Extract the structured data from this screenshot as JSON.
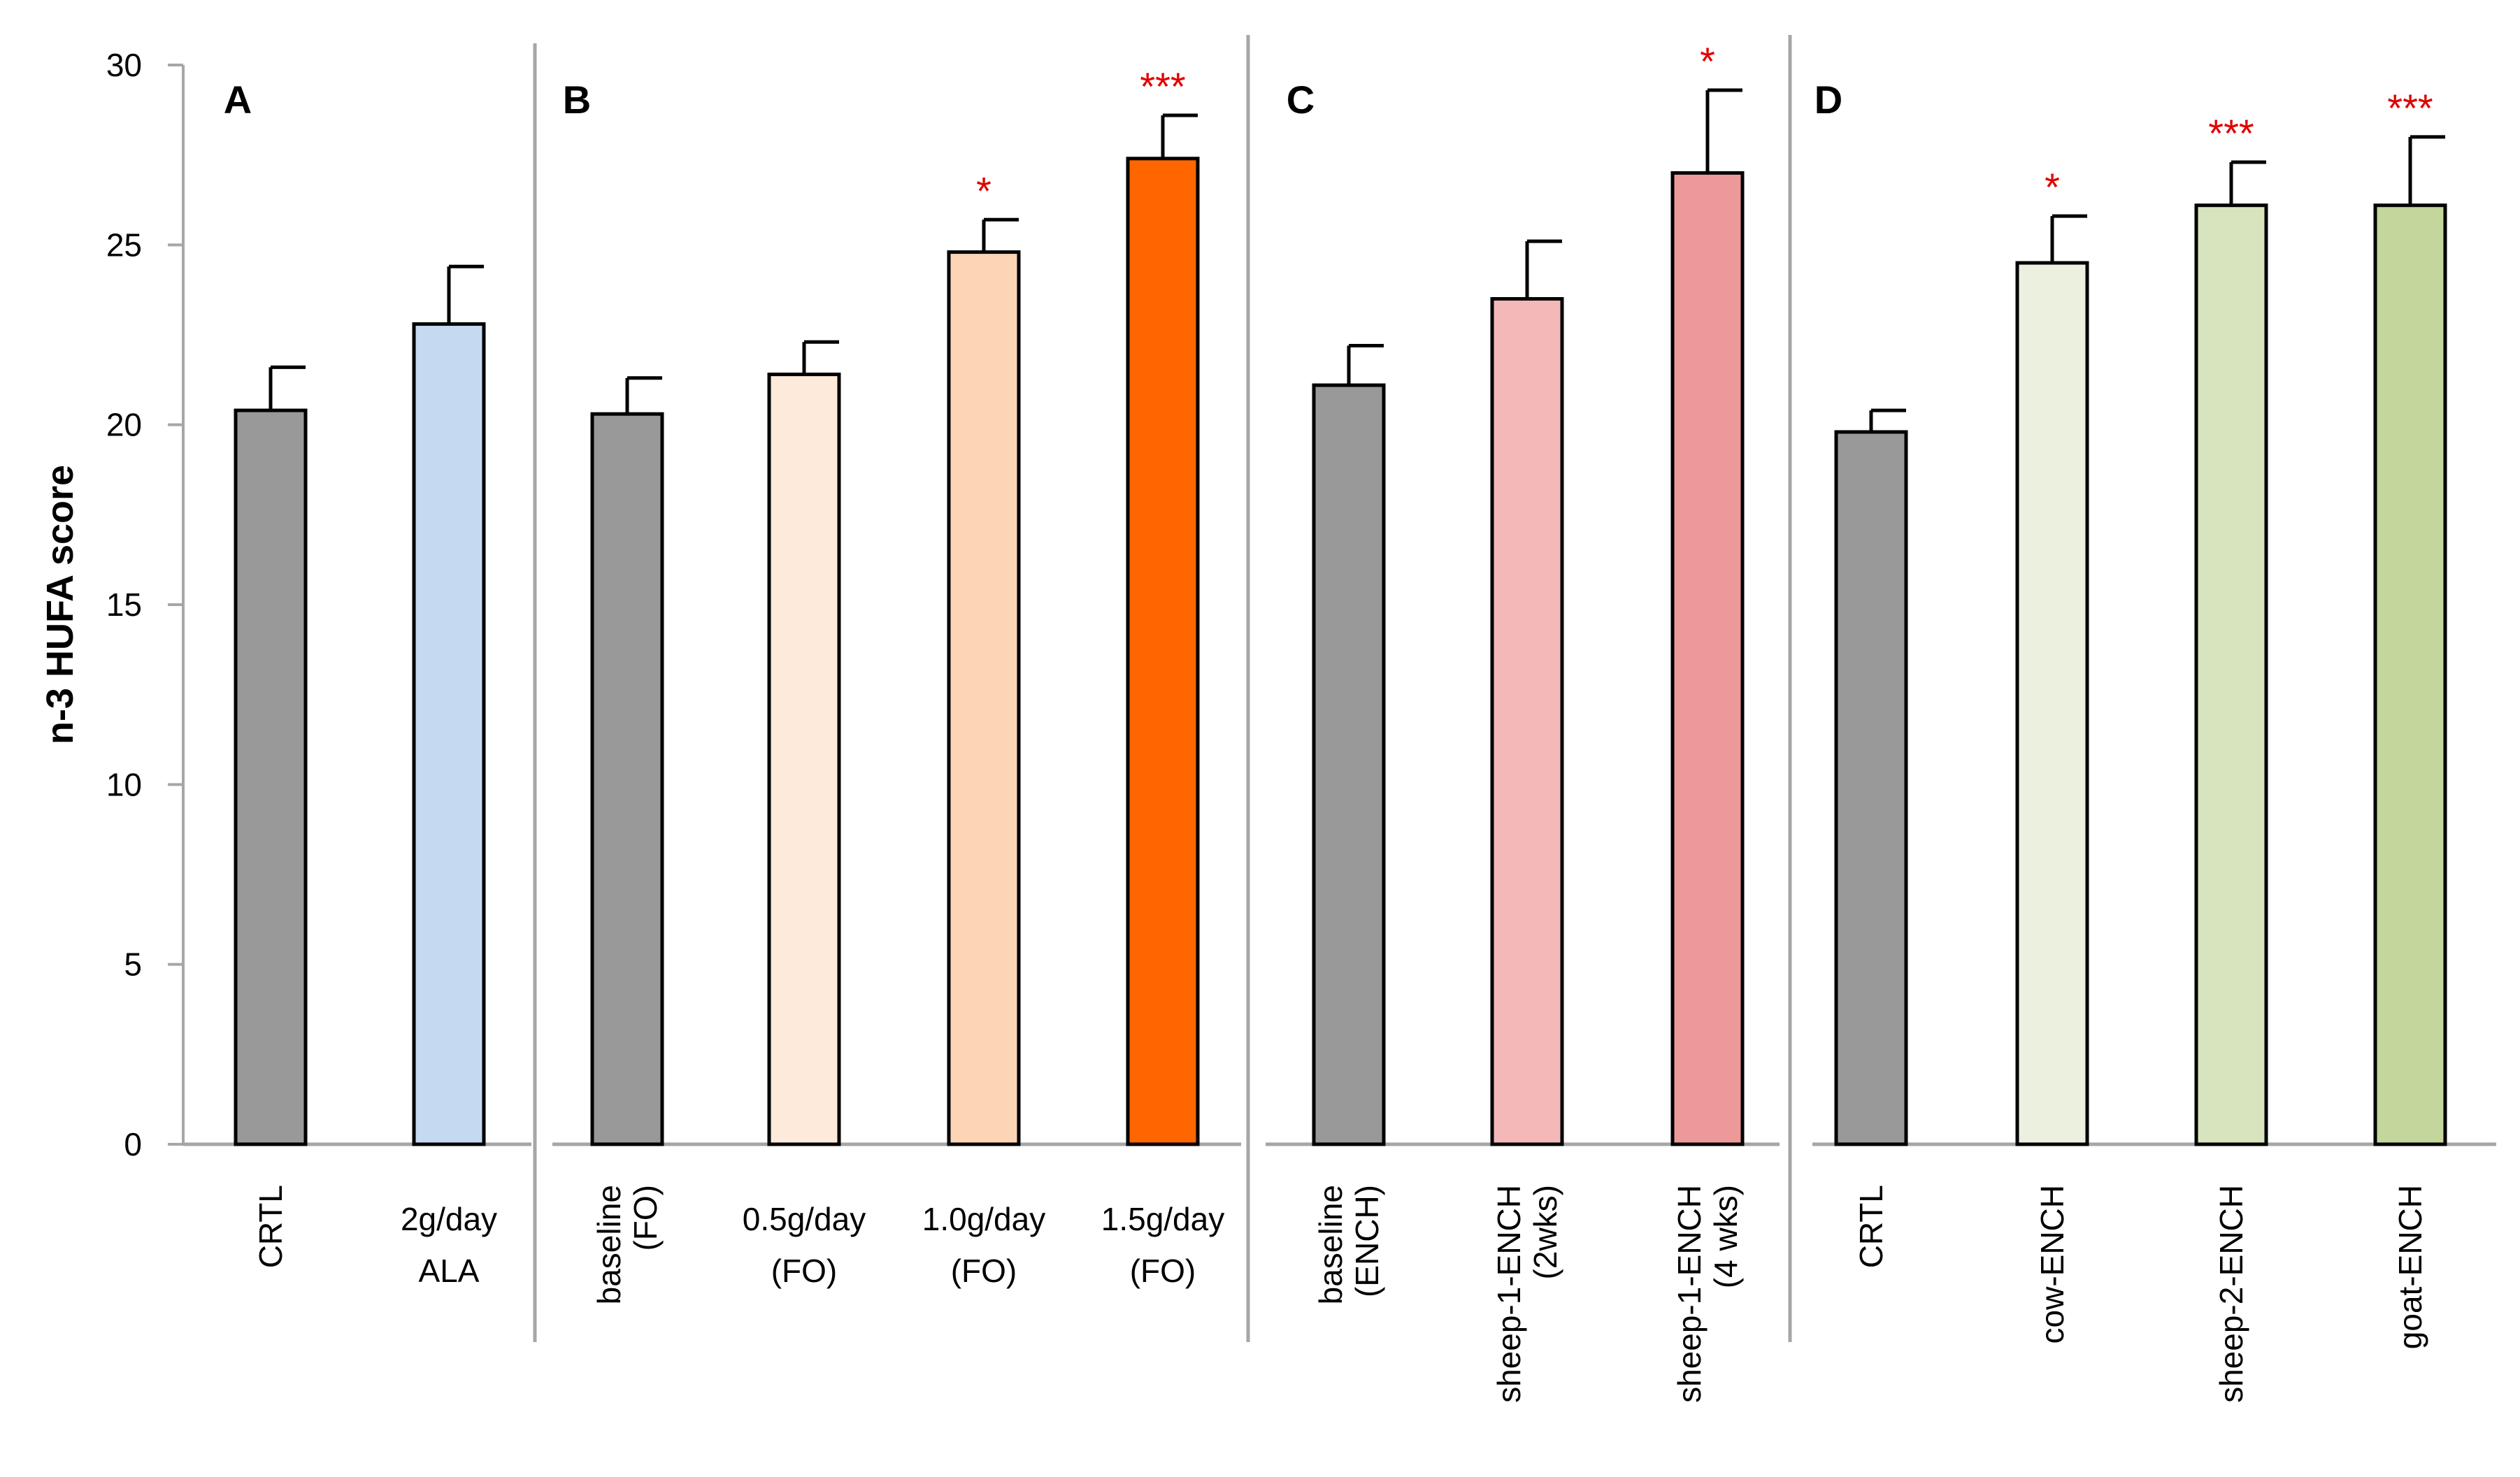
{
  "chart_data": {
    "type": "bar",
    "ylabel": "n-3 HUFA score",
    "ylim": [
      0,
      30
    ],
    "yticks": [
      0,
      5,
      10,
      15,
      20,
      25,
      30
    ],
    "panels": [
      {
        "label": "A",
        "bars": [
          {
            "category": [
              "CRTL"
            ],
            "value": 20.4,
            "error": 1.2,
            "color": "#999999",
            "sig": ""
          },
          {
            "category": [
              "2g/day",
              "ALA"
            ],
            "value": 22.8,
            "error": 1.6,
            "color": "#c5d9f1",
            "sig": ""
          }
        ]
      },
      {
        "label": "B",
        "bars": [
          {
            "category": [
              "baseline",
              "(FO)"
            ],
            "value": 20.3,
            "error": 1.0,
            "color": "#999999",
            "sig": ""
          },
          {
            "category": [
              "0.5g/day",
              "(FO)"
            ],
            "value": 21.4,
            "error": 0.9,
            "color": "#fdeada",
            "sig": ""
          },
          {
            "category": [
              "1.0g/day",
              "(FO)"
            ],
            "value": 24.8,
            "error": 0.9,
            "color": "#fcd5b5",
            "sig": "*"
          },
          {
            "category": [
              "1.5g/day",
              "(FO)"
            ],
            "value": 27.4,
            "error": 1.2,
            "color": "#ff6600",
            "sig": "***"
          }
        ]
      },
      {
        "label": "C",
        "bars": [
          {
            "category": [
              "baseline",
              "(ENCH)"
            ],
            "value": 21.1,
            "error": 1.1,
            "color": "#999999",
            "sig": ""
          },
          {
            "category": [
              "sheep-1-ENCH",
              "(2wks)"
            ],
            "value": 23.5,
            "error": 1.6,
            "color": "#f4b8b8",
            "sig": ""
          },
          {
            "category": [
              "sheep-1-ENCH",
              "(4 wks)"
            ],
            "value": 27.0,
            "error": 2.3,
            "color": "#ee9999",
            "sig": "*"
          }
        ]
      },
      {
        "label": "D",
        "bars": [
          {
            "category": [
              "CRTL"
            ],
            "value": 19.8,
            "error": 0.6,
            "color": "#999999",
            "sig": ""
          },
          {
            "category": [
              "cow-ENCH"
            ],
            "value": 24.5,
            "error": 1.3,
            "color": "#ebf1de",
            "sig": "*"
          },
          {
            "category": [
              "sheep-2-ENCH"
            ],
            "value": 26.1,
            "error": 1.2,
            "color": "#d7e4bd",
            "sig": "***"
          },
          {
            "category": [
              "goat-ENCH"
            ],
            "value": 26.1,
            "error": 1.9,
            "color": "#c3d69b",
            "sig": "***"
          }
        ]
      }
    ]
  }
}
